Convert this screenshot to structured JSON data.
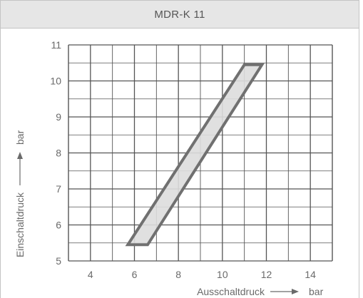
{
  "header": {
    "title": "MDR-K 11"
  },
  "chart_data": {
    "type": "area",
    "title": "MDR-K 11",
    "xlabel": "Ausschaltdruck",
    "ylabel": "Einschaltdruck",
    "x_unit": "bar",
    "y_unit": "bar",
    "xlim": [
      3,
      15
    ],
    "ylim": [
      5,
      11
    ],
    "x_ticks": [
      4,
      6,
      8,
      10,
      12,
      14
    ],
    "x_tick_labels": [
      "4",
      "6",
      "8",
      "10",
      "12",
      "14"
    ],
    "y_ticks": [
      5,
      6,
      7,
      8,
      9,
      10,
      11
    ],
    "y_tick_labels": [
      "5",
      "6",
      "7",
      "8",
      "9",
      "10",
      "11"
    ],
    "grid": true,
    "series": [
      {
        "region": [
          {
            "x": 5.7,
            "y": 5.45
          },
          {
            "x": 6.6,
            "y": 5.45
          },
          {
            "x": 11.8,
            "y": 10.45
          },
          {
            "x": 11.0,
            "y": 10.45
          }
        ]
      }
    ],
    "colors": {
      "fill": "#dddddd",
      "outline": "#707070",
      "grid": "#555555"
    }
  }
}
